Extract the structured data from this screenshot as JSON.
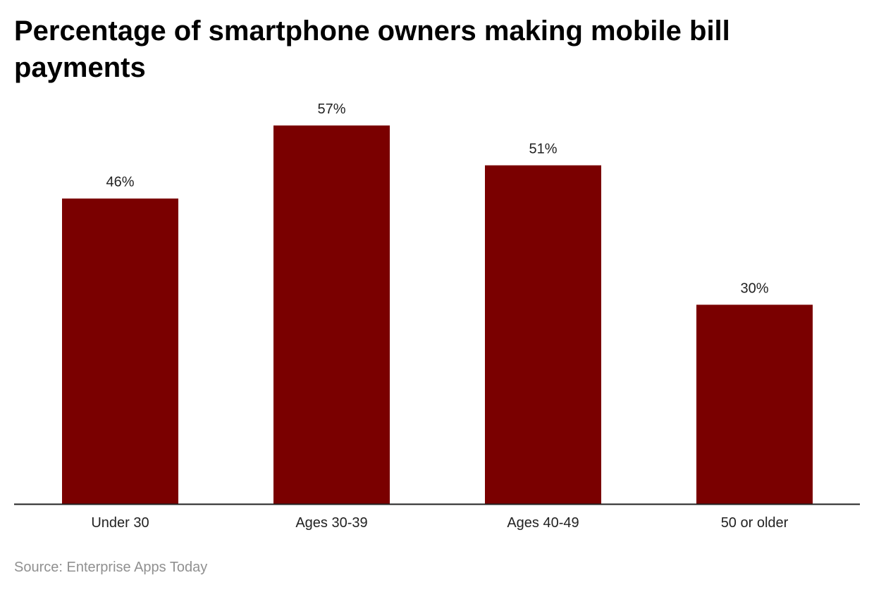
{
  "chart_data": {
    "type": "bar",
    "title": "Percentage of smartphone owners making mobile bill payments",
    "categories": [
      "Under 30",
      "Ages 30-39",
      "Ages 40-49",
      "50 or older"
    ],
    "values": [
      46,
      57,
      51,
      30
    ],
    "data_labels": [
      "46%",
      "57%",
      "51%",
      "30%"
    ],
    "xlabel": "",
    "ylabel": "",
    "ylim": [
      0,
      60
    ],
    "grid": false,
    "bar_color": "#7a0000",
    "source": "Source: Enterprise Apps Today"
  }
}
